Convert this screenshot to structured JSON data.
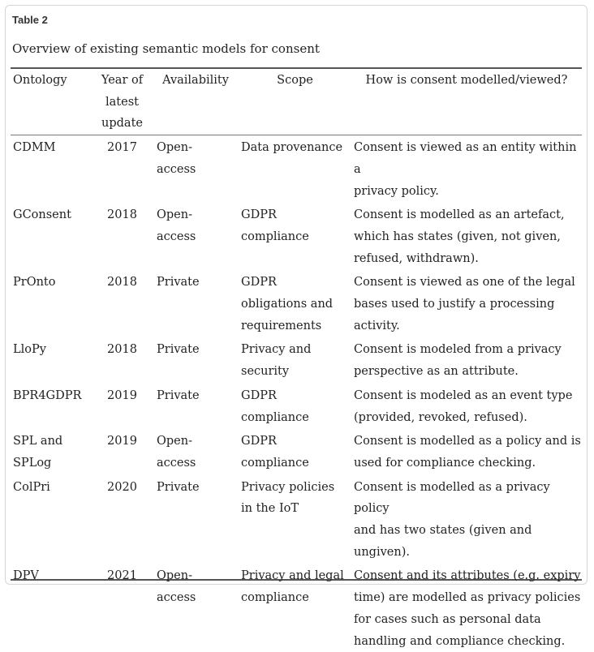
{
  "table_label": "Table 2",
  "caption": "Overview of existing semantic models for consent",
  "headers": {
    "ontology": "Ontology",
    "year": [
      "Year of",
      "latest",
      "update"
    ],
    "availability": "Availability",
    "scope": "Scope",
    "how": "How is consent modelled/viewed?"
  },
  "rows": [
    {
      "ontology": [
        "CDMM"
      ],
      "year": "2017",
      "availability": [
        "Open-",
        "access"
      ],
      "scope": [
        "Data provenance"
      ],
      "how": [
        "Consent is viewed as an entity within a",
        "privacy policy."
      ]
    },
    {
      "ontology": [
        "GConsent"
      ],
      "year": "2018",
      "availability": [
        "Open-",
        "access"
      ],
      "scope": [
        "GDPR",
        "compliance"
      ],
      "how": [
        "Consent is modelled as an artefact,",
        "which has states (given, not given,",
        "refused, withdrawn)."
      ]
    },
    {
      "ontology": [
        "PrOnto"
      ],
      "year": "2018",
      "availability": [
        "Private"
      ],
      "scope": [
        "GDPR",
        "obligations and",
        "requirements"
      ],
      "how": [
        "Consent is viewed as one of the legal",
        "bases used to justify a processing",
        "activity."
      ]
    },
    {
      "ontology": [
        "LloPy"
      ],
      "year": "2018",
      "availability": [
        "Private"
      ],
      "scope": [
        "Privacy and",
        "security"
      ],
      "how": [
        "Consent is modeled from a privacy",
        "perspective as an attribute."
      ]
    },
    {
      "ontology": [
        "BPR4GDPR"
      ],
      "year": "2019",
      "availability": [
        "Private"
      ],
      "scope": [
        "GDPR",
        "compliance"
      ],
      "how": [
        "Consent is modeled as an event type",
        "(provided, revoked, refused)."
      ]
    },
    {
      "ontology": [
        "SPL and",
        "SPLog"
      ],
      "year": "2019",
      "availability": [
        "Open-",
        "access"
      ],
      "scope": [
        "GDPR",
        "compliance"
      ],
      "how": [
        "Consent is modelled as a policy and is",
        "used for compliance checking."
      ]
    },
    {
      "ontology": [
        "ColPri"
      ],
      "year": "2020",
      "availability": [
        "Private"
      ],
      "scope": [
        "Privacy policies",
        "in the IoT"
      ],
      "how": [
        "Consent is modelled as a privacy policy",
        "and has two states (given and ungiven)."
      ]
    },
    {
      "ontology": [
        "DPV"
      ],
      "year": "2021",
      "availability": [
        "Open-",
        "access"
      ],
      "scope": [
        "Privacy and legal",
        "compliance"
      ],
      "how": [
        "Consent and its attributes (e.g. expiry",
        "time) are modelled as privacy policies",
        "for cases such as personal data",
        "handling and compliance checking."
      ]
    }
  ]
}
